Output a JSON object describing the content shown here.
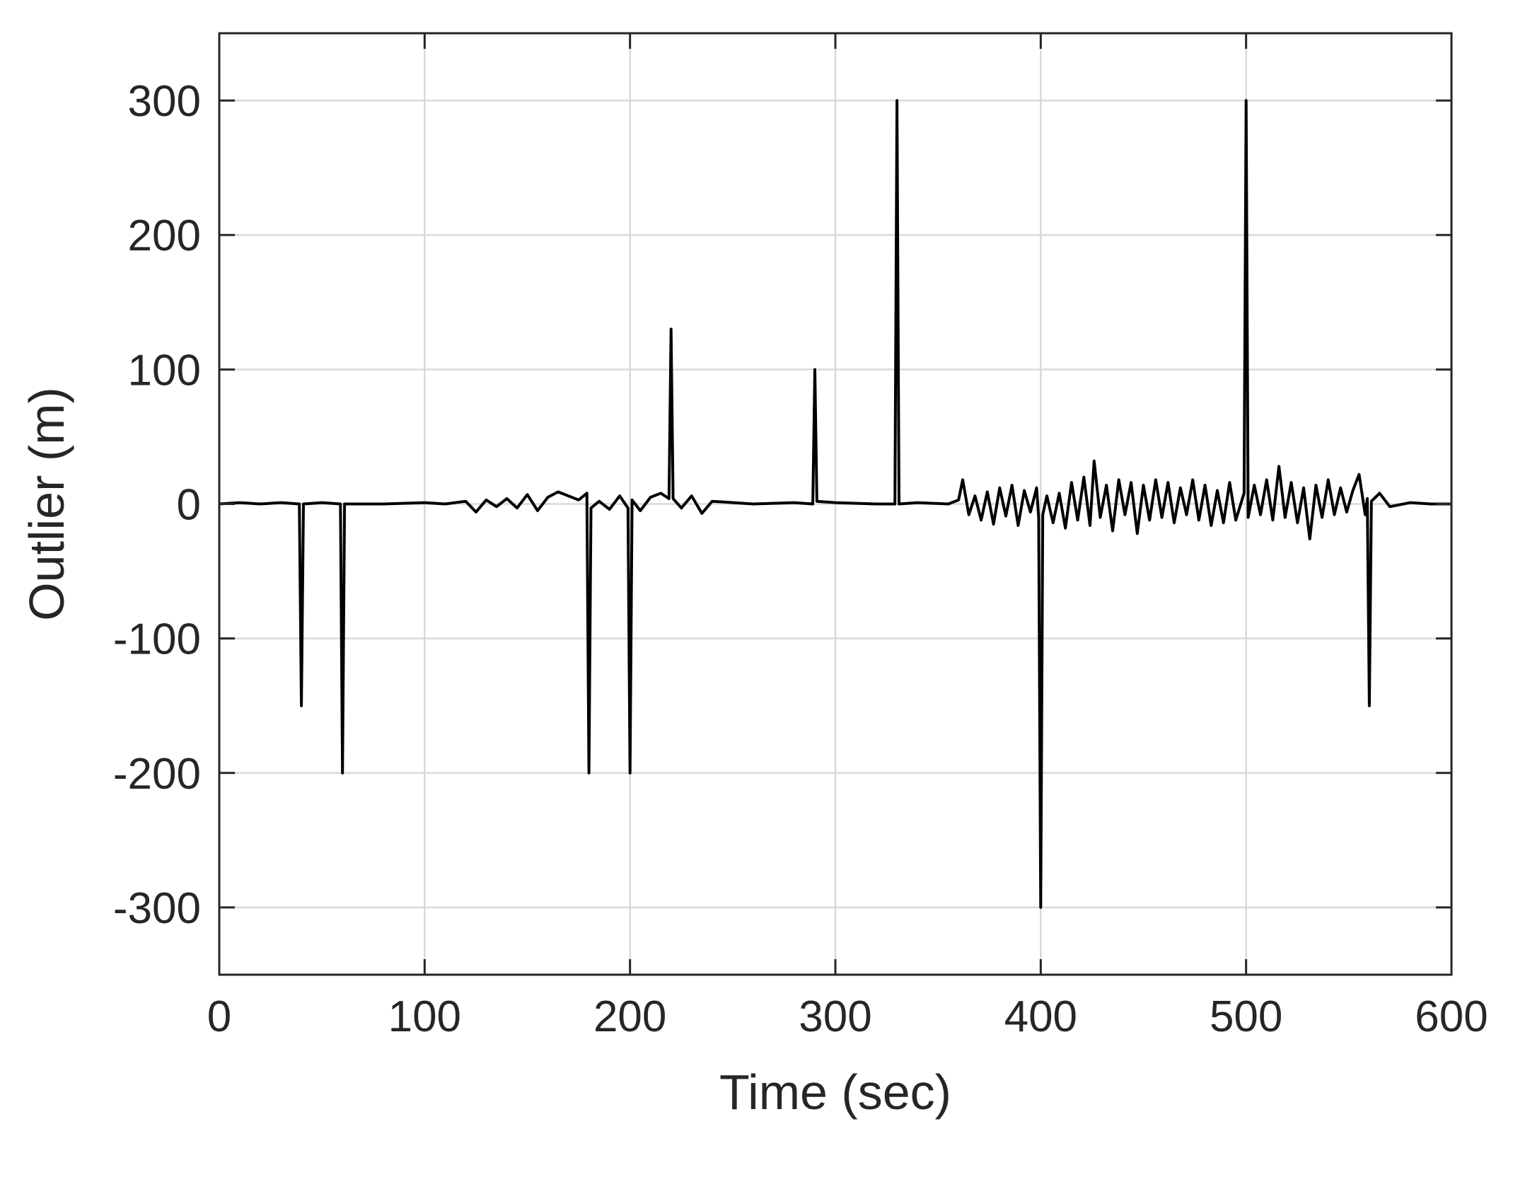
{
  "chart_data": {
    "type": "line",
    "xlabel": "Time (sec)",
    "ylabel": "Outlier (m)",
    "xlim": [
      0,
      600
    ],
    "ylim": [
      -350,
      350
    ],
    "xticks": [
      0,
      100,
      200,
      300,
      400,
      500,
      600
    ],
    "yticks": [
      300,
      200,
      100,
      0,
      -100,
      -200,
      -300
    ],
    "xtick_labels": [
      "0",
      "100",
      "200",
      "300",
      "400",
      "500",
      "600"
    ],
    "ytick_labels": [
      "300",
      "200",
      "100",
      "0",
      "-100",
      "-200",
      "-300"
    ],
    "grid": true,
    "line_color": "#000000",
    "series": [
      {
        "x": [
          0,
          10,
          20,
          30,
          39,
          40,
          41,
          50,
          59,
          60,
          61,
          80,
          100,
          110,
          120,
          125,
          130,
          135,
          140,
          145,
          150,
          155,
          160,
          165,
          170,
          175,
          179,
          180,
          181,
          185,
          190,
          195,
          199,
          200,
          201,
          205,
          210,
          215,
          219,
          220,
          221,
          225,
          230,
          235,
          240,
          260,
          280,
          289,
          290,
          291,
          300,
          320,
          329,
          330,
          331,
          340,
          355,
          360,
          362,
          365,
          368,
          371,
          374,
          377,
          380,
          383,
          386,
          389,
          392,
          395,
          398,
          399,
          400,
          401,
          403,
          406,
          409,
          412,
          415,
          418,
          421,
          424,
          426,
          429,
          432,
          435,
          438,
          441,
          444,
          447,
          450,
          453,
          456,
          459,
          462,
          465,
          468,
          471,
          474,
          477,
          480,
          483,
          486,
          489,
          492,
          495,
          499,
          500,
          501,
          504,
          507,
          510,
          513,
          516,
          519,
          522,
          525,
          528,
          531,
          534,
          537,
          540,
          543,
          546,
          549,
          552,
          555,
          558,
          559,
          560,
          561,
          565,
          570,
          580,
          590,
          600
        ],
        "y": [
          0,
          1,
          0,
          1,
          0,
          -150,
          0,
          1,
          0,
          -200,
          0,
          0,
          1,
          0,
          2,
          -6,
          3,
          -2,
          4,
          -3,
          7,
          -5,
          5,
          9,
          6,
          3,
          8,
          -200,
          -3,
          2,
          -4,
          6,
          -3,
          -200,
          3,
          -5,
          5,
          8,
          4,
          130,
          4,
          -3,
          6,
          -7,
          2,
          0,
          1,
          0,
          100,
          2,
          1,
          0,
          0,
          300,
          0,
          1,
          0,
          3,
          18,
          -8,
          6,
          -12,
          9,
          -15,
          12,
          -9,
          14,
          -16,
          10,
          -6,
          12,
          -10,
          -300,
          -8,
          6,
          -14,
          8,
          -18,
          16,
          -12,
          20,
          -16,
          32,
          -10,
          14,
          -20,
          18,
          -8,
          16,
          -22,
          14,
          -12,
          18,
          -10,
          16,
          -14,
          12,
          -8,
          18,
          -12,
          14,
          -16,
          10,
          -14,
          16,
          -12,
          8,
          300,
          -10,
          14,
          -8,
          18,
          -12,
          28,
          -10,
          16,
          -14,
          12,
          -26,
          14,
          -10,
          18,
          -8,
          12,
          -6,
          10,
          22,
          -8,
          4,
          -150,
          2,
          8,
          -2,
          1,
          0,
          0
        ]
      }
    ]
  }
}
